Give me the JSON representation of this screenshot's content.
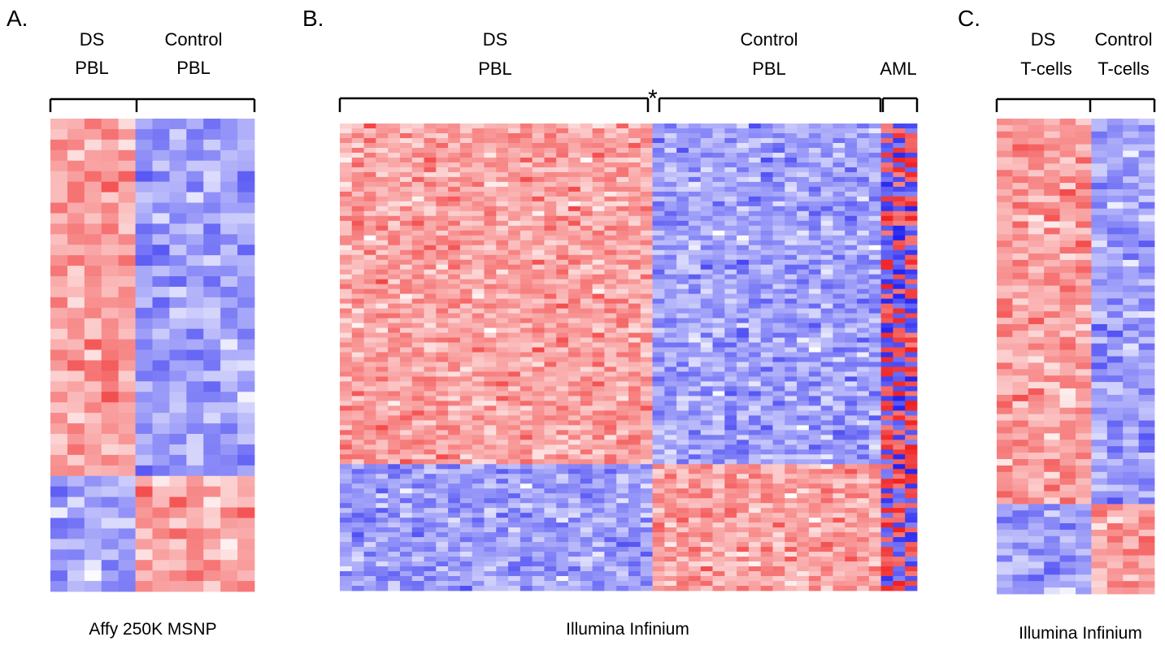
{
  "colors": {
    "high": "#f01f1f",
    "low": "#1f1ff0",
    "mid": "#ffffff",
    "bracket": "#000000"
  },
  "chart_data": [
    {
      "type": "heatmap",
      "panel_label": "A.",
      "groups": [
        {
          "label_lines": [
            "DS",
            "PBL"
          ],
          "columns": 5
        },
        {
          "label_lines": [
            "Control",
            "PBL"
          ],
          "columns": 7
        }
      ],
      "rows": 45,
      "row_blocks": [
        {
          "rows": 34,
          "pattern": [
            1,
            -1
          ]
        },
        {
          "rows": 11,
          "pattern": [
            -1,
            1
          ]
        }
      ],
      "color_scale": "blue-white-red",
      "footer": "Affy 250K MSNP"
    },
    {
      "type": "heatmap",
      "panel_label": "B.",
      "groups": [
        {
          "label_lines": [
            "DS",
            "PBL"
          ],
          "columns": 26
        },
        {
          "label_lines": [
            "Control",
            "PBL"
          ],
          "columns": 19
        },
        {
          "label_lines": [
            "AML"
          ],
          "columns": 3
        }
      ],
      "annotation": "*",
      "rows": 96,
      "row_blocks": [
        {
          "rows": 70,
          "pattern": [
            1,
            -1,
            0
          ]
        },
        {
          "rows": 26,
          "pattern": [
            -1,
            1,
            0
          ]
        }
      ],
      "color_scale": "blue-white-red",
      "footer": "Illumina Infinium"
    },
    {
      "type": "heatmap",
      "panel_label": "C.",
      "groups": [
        {
          "label_lines": [
            "DS",
            "T-cells"
          ],
          "columns": 6
        },
        {
          "label_lines": [
            "Control",
            "T-cells"
          ],
          "columns": 4
        }
      ],
      "rows": 74,
      "row_blocks": [
        {
          "rows": 60,
          "pattern": [
            1,
            -1
          ]
        },
        {
          "rows": 14,
          "pattern": [
            -1,
            1
          ]
        }
      ],
      "color_scale": "blue-white-red",
      "footer": "Illumina Infinium"
    }
  ]
}
